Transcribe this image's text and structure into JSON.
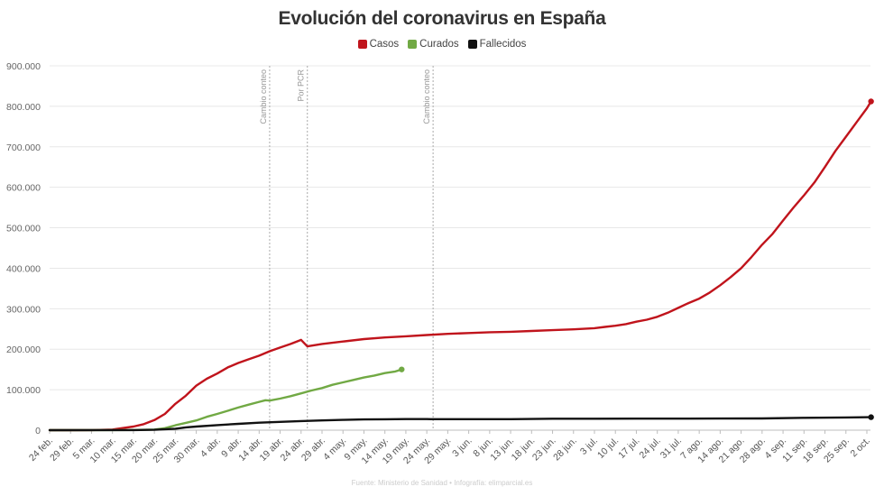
{
  "chart_data": {
    "type": "line",
    "title": "Evolución del coronavirus en España",
    "source": "Fuente: Ministerio de Sanidad • Infografía: elimparcial.es",
    "x_categories": [
      "24 feb.",
      "29 feb.",
      "5 mar.",
      "10 mar.",
      "15 mar.",
      "20 mar.",
      "25 mar.",
      "30 mar.",
      "4 abr.",
      "9 abr.",
      "14 abr.",
      "19 abr.",
      "24 abr.",
      "29 abr.",
      "4 may.",
      "9 may.",
      "14 may.",
      "19 may.",
      "24 may.",
      "29 may.",
      "3 jun.",
      "8 jun.",
      "13 jun.",
      "18 jun.",
      "23 jun.",
      "28 jun.",
      "3 jul.",
      "10 jul.",
      "17 jul.",
      "24 jul.",
      "31 jul.",
      "7 ago.",
      "14 ago.",
      "21 ago.",
      "28 ago.",
      "4 sep.",
      "11 sep.",
      "18 sep.",
      "25 sep.",
      "2 oct."
    ],
    "y_ticks": [
      "0",
      "100.000",
      "200.000",
      "300.000",
      "400.000",
      "500.000",
      "600.000",
      "700.000",
      "800.000",
      "900.000"
    ],
    "ylim": [
      0,
      900000
    ],
    "grid": true,
    "legend_position": "top-center",
    "annotations": [
      {
        "x": 10.5,
        "label": "Cambio conteo"
      },
      {
        "x": 12.3,
        "label": "Por PCR"
      },
      {
        "x": 18.3,
        "label": "Cambio conteo"
      }
    ],
    "series": [
      {
        "name": "Casos",
        "color": "#c0141c",
        "end_marker": true,
        "points": [
          [
            0,
            0
          ],
          [
            1,
            100
          ],
          [
            2,
            300
          ],
          [
            3,
            1600
          ],
          [
            4,
            9000
          ],
          [
            4.5,
            15000
          ],
          [
            5,
            25000
          ],
          [
            5.5,
            40000
          ],
          [
            6,
            65000
          ],
          [
            6.5,
            85000
          ],
          [
            7,
            110000
          ],
          [
            7.5,
            127000
          ],
          [
            8,
            140000
          ],
          [
            8.5,
            155000
          ],
          [
            9,
            166000
          ],
          [
            9.5,
            175000
          ],
          [
            10,
            184000
          ],
          [
            10.5,
            195000
          ],
          [
            11,
            204000
          ],
          [
            11.5,
            213000
          ],
          [
            12,
            223000
          ],
          [
            12.3,
            207000
          ],
          [
            13,
            213000
          ],
          [
            14,
            219000
          ],
          [
            15,
            225000
          ],
          [
            16,
            229000
          ],
          [
            17,
            232000
          ],
          [
            18,
            235000
          ],
          [
            19,
            238000
          ],
          [
            20,
            240000
          ],
          [
            21,
            242000
          ],
          [
            22,
            243000
          ],
          [
            23,
            245000
          ],
          [
            24,
            247000
          ],
          [
            25,
            249000
          ],
          [
            26,
            252000
          ],
          [
            26.5,
            255000
          ],
          [
            27,
            258000
          ],
          [
            27.5,
            262000
          ],
          [
            28,
            268000
          ],
          [
            28.5,
            273000
          ],
          [
            29,
            280000
          ],
          [
            29.5,
            290000
          ],
          [
            30,
            302000
          ],
          [
            30.5,
            314000
          ],
          [
            31,
            325000
          ],
          [
            31.5,
            340000
          ],
          [
            32,
            358000
          ],
          [
            32.5,
            378000
          ],
          [
            33,
            400000
          ],
          [
            33.5,
            428000
          ],
          [
            34,
            458000
          ],
          [
            34.5,
            485000
          ],
          [
            35,
            518000
          ],
          [
            35.5,
            550000
          ],
          [
            36,
            580000
          ],
          [
            36.5,
            612000
          ],
          [
            37,
            650000
          ],
          [
            37.5,
            690000
          ],
          [
            38,
            725000
          ],
          [
            38.5,
            760000
          ],
          [
            39,
            795000
          ],
          [
            39.2,
            812000
          ]
        ]
      },
      {
        "name": "Curados",
        "color": "#71a944",
        "end_marker": true,
        "points": [
          [
            0,
            0
          ],
          [
            3,
            200
          ],
          [
            4,
            500
          ],
          [
            5,
            1500
          ],
          [
            5.5,
            5000
          ],
          [
            6,
            12000
          ],
          [
            6.5,
            18000
          ],
          [
            7,
            24000
          ],
          [
            7.5,
            33000
          ],
          [
            8,
            40000
          ],
          [
            8.5,
            48000
          ],
          [
            9,
            56000
          ],
          [
            9.5,
            63000
          ],
          [
            10,
            70000
          ],
          [
            10.3,
            74000
          ],
          [
            10.5,
            73000
          ],
          [
            11,
            78000
          ],
          [
            11.5,
            84000
          ],
          [
            12,
            91000
          ],
          [
            12.5,
            98000
          ],
          [
            13,
            104000
          ],
          [
            13.5,
            112000
          ],
          [
            14,
            118000
          ],
          [
            14.5,
            124000
          ],
          [
            15,
            130000
          ],
          [
            15.5,
            135000
          ],
          [
            16,
            141000
          ],
          [
            16.5,
            145000
          ],
          [
            16.8,
            150000
          ]
        ]
      },
      {
        "name": "Fallecidos",
        "color": "#111111",
        "end_marker": true,
        "points": [
          [
            0,
            0
          ],
          [
            4,
            200
          ],
          [
            5,
            1000
          ],
          [
            6,
            3500
          ],
          [
            6.5,
            7000
          ],
          [
            7,
            9000
          ],
          [
            8,
            12500
          ],
          [
            9,
            15500
          ],
          [
            10,
            18500
          ],
          [
            11,
            20500
          ],
          [
            12,
            22500
          ],
          [
            13,
            24000
          ],
          [
            14,
            25500
          ],
          [
            15,
            26500
          ],
          [
            16,
            27000
          ],
          [
            17,
            27500
          ],
          [
            18,
            27500
          ],
          [
            18.2,
            27100
          ],
          [
            20,
            27100
          ],
          [
            22,
            27100
          ],
          [
            24,
            28300
          ],
          [
            26,
            28400
          ],
          [
            28,
            28500
          ],
          [
            30,
            28600
          ],
          [
            32,
            28800
          ],
          [
            34,
            29000
          ],
          [
            36,
            30500
          ],
          [
            38,
            31500
          ],
          [
            39.2,
            32100
          ]
        ]
      }
    ]
  }
}
